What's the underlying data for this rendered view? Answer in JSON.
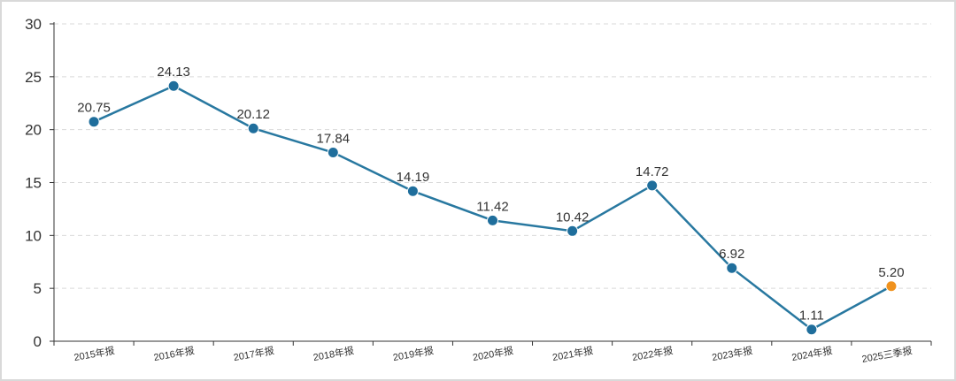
{
  "chart_data": {
    "type": "line",
    "categories": [
      "2015年报",
      "2016年报",
      "2017年报",
      "2018年报",
      "2019年报",
      "2020年报",
      "2021年报",
      "2022年报",
      "2023年报",
      "2024年报",
      "2025三季报"
    ],
    "series": [
      {
        "values": [
          20.75,
          24.13,
          20.12,
          17.84,
          14.19,
          11.42,
          10.42,
          14.72,
          6.92,
          1.11,
          5.2
        ],
        "labels": [
          "20.75",
          "24.13",
          "20.12",
          "17.84",
          "14.19",
          "11.42",
          "10.42",
          "14.72",
          "6.92",
          "1.11",
          "5.20"
        ]
      }
    ],
    "y_ticks": [
      "0",
      "5",
      "10",
      "15",
      "20",
      "25",
      "30"
    ],
    "ylim": [
      0,
      30
    ],
    "grid": "horizontal-dashed",
    "colors": {
      "line": "#2878a0",
      "point": "#1f6e9c",
      "highlight_point": "#f0921e",
      "grid": "#d9d9d9",
      "axis": "#333333"
    },
    "highlight_index": 10
  }
}
